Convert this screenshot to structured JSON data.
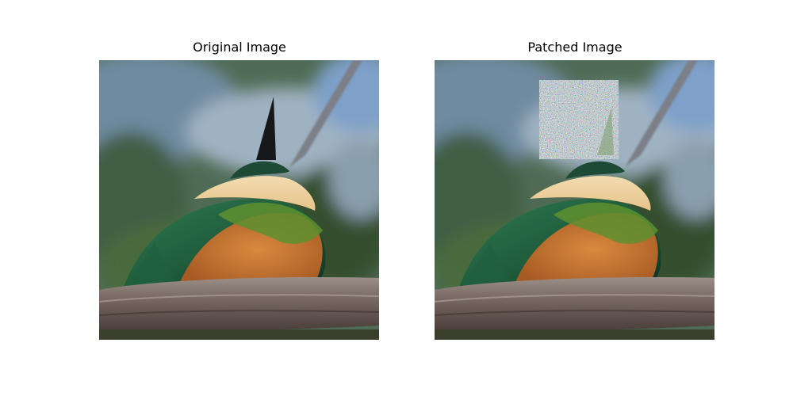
{
  "figure": {
    "panels": [
      {
        "title": "Original Image",
        "image": "kingfisher-photo",
        "patched": false
      },
      {
        "title": "Patched Image",
        "image": "kingfisher-photo-with-adversarial-patch",
        "patched": true
      }
    ]
  }
}
